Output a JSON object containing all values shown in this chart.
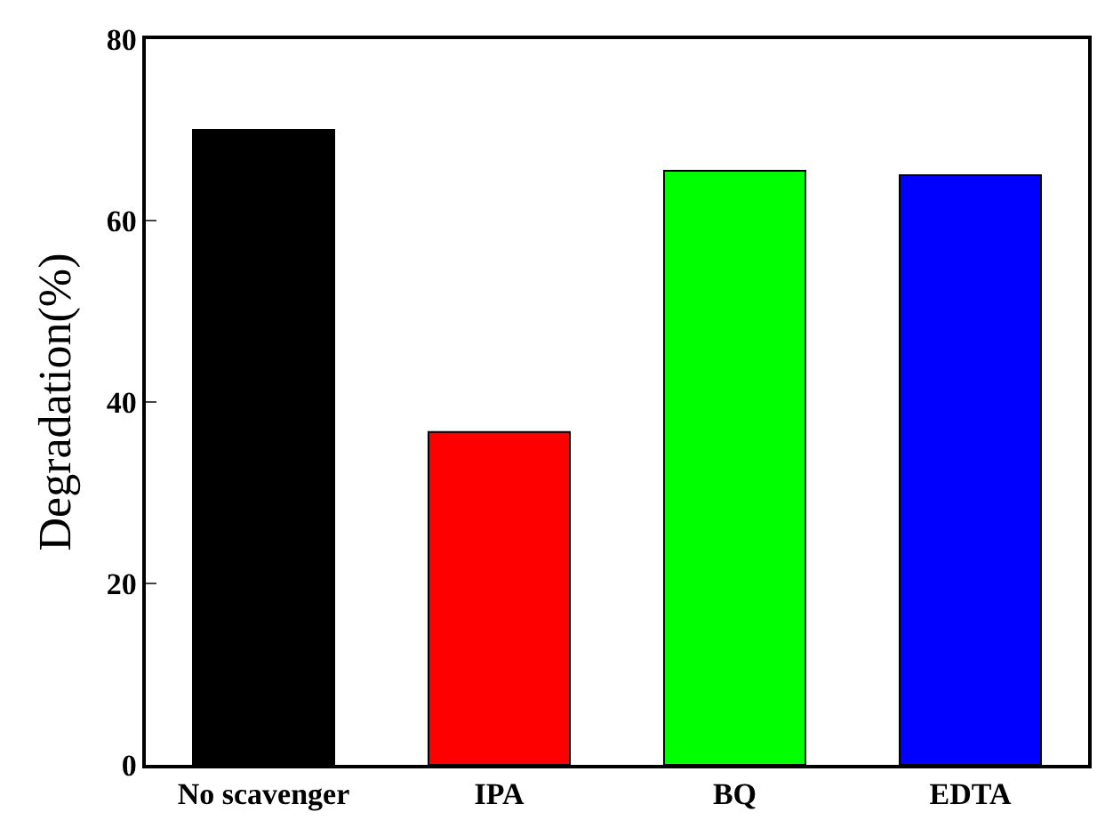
{
  "chart_data": {
    "type": "bar",
    "ylabel": "Degradation(%)",
    "categories": [
      "No scavenger",
      "IPA",
      "BQ",
      "EDTA"
    ],
    "values": [
      70,
      36.7,
      65.5,
      65
    ],
    "colors": [
      "#000000",
      "#ff0000",
      "#00ff00",
      "#0000ff"
    ],
    "ylim": [
      0,
      80
    ],
    "yticks": [
      0,
      20,
      40,
      60,
      80
    ],
    "grid": false
  }
}
